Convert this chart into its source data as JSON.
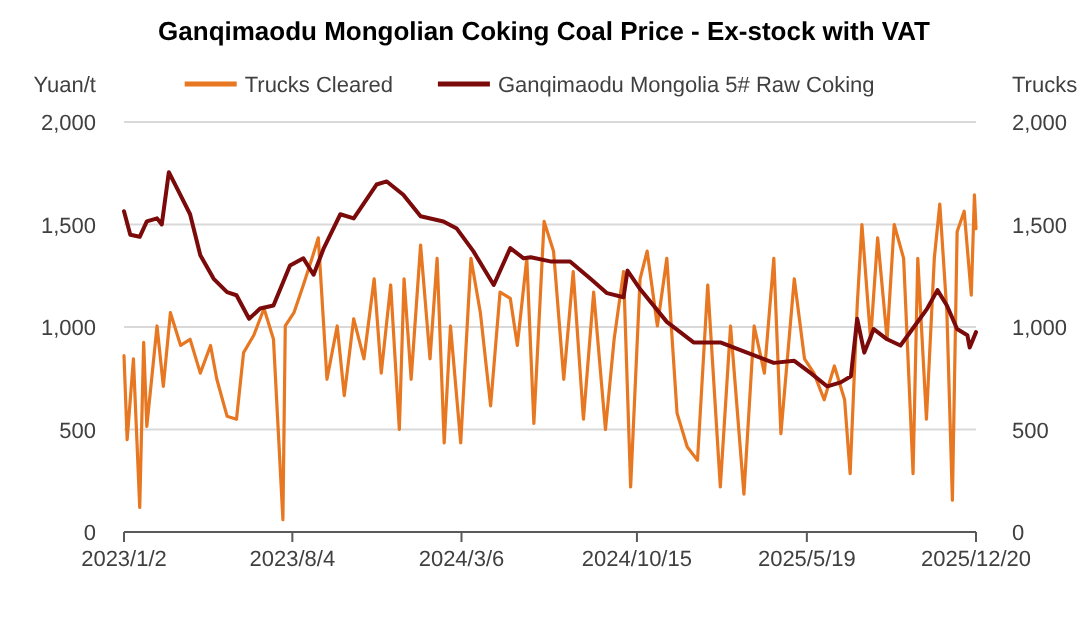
{
  "chart_data": {
    "type": "line",
    "title": "Ganqimaodu Mongolian Coking Coal Price - Ex-stock with VAT",
    "ylabel": "Yuan/t",
    "y2label": "Trucks",
    "legend": "top",
    "grid": "y",
    "xlim": [
      "2023-01-02",
      "2025-12-20"
    ],
    "xticks": [
      {
        "value": "2023-01-02",
        "label": "2023/1/2"
      },
      {
        "value": "2023-08-04",
        "label": "2023/8/4"
      },
      {
        "value": "2024-03-06",
        "label": "2024/3/6"
      },
      {
        "value": "2024-10-15",
        "label": "2024/10/15"
      },
      {
        "value": "2025-05-19",
        "label": "2025/5/19"
      },
      {
        "value": "2025-12-20",
        "label": "2025/12/20"
      }
    ],
    "ylim": [
      0,
      2000
    ],
    "yticks": [
      0,
      {
        "value": 500,
        "label": "500"
      },
      {
        "value": 1000,
        "label": "1,000"
      },
      {
        "value": 1500,
        "label": "1,500"
      },
      {
        "value": 2000,
        "label": "2,000"
      }
    ],
    "y2lim": [
      0,
      2000
    ],
    "y2ticks": [
      0,
      {
        "value": 500,
        "label": "500"
      },
      {
        "value": 1000,
        "label": "1,000"
      },
      {
        "value": 1500,
        "label": "1,500"
      },
      {
        "value": 2000,
        "label": "2,000"
      }
    ],
    "series": [
      {
        "name": "Trucks Cleared",
        "color": "#e87722",
        "axis": "y2",
        "x": [
          "2023-01-02",
          "2023-01-06",
          "2023-01-14",
          "2023-01-22",
          "2023-01-27",
          "2023-01-31",
          "2023-02-13",
          "2023-02-21",
          "2023-03-02",
          "2023-03-15",
          "2023-03-27",
          "2023-04-09",
          "2023-04-22",
          "2023-04-30",
          "2023-05-13",
          "2023-05-25",
          "2023-06-03",
          "2023-06-16",
          "2023-06-29",
          "2023-07-11",
          "2023-07-23",
          "2023-07-26",
          "2023-08-06",
          "2023-08-18",
          "2023-08-29",
          "2023-09-06",
          "2023-09-17",
          "2023-09-30",
          "2023-10-09",
          "2023-10-21",
          "2023-11-03",
          "2023-11-16",
          "2023-11-25",
          "2023-12-07",
          "2023-12-18",
          "2023-12-24",
          "2024-01-02",
          "2024-01-14",
          "2024-01-26",
          "2024-02-04",
          "2024-02-13",
          "2024-02-21",
          "2024-03-05",
          "2024-03-18",
          "2024-03-30",
          "2024-04-12",
          "2024-04-24",
          "2024-05-07",
          "2024-05-16",
          "2024-05-28",
          "2024-06-06",
          "2024-06-19",
          "2024-07-01",
          "2024-07-14",
          "2024-07-26",
          "2024-08-08",
          "2024-08-21",
          "2024-09-05",
          "2024-09-16",
          "2024-09-28",
          "2024-10-07",
          "2024-10-19",
          "2024-10-28",
          "2024-11-10",
          "2024-11-22",
          "2024-12-05",
          "2024-12-18",
          "2024-12-31",
          "2025-01-13",
          "2025-01-29",
          "2025-02-11",
          "2025-02-28",
          "2025-03-13",
          "2025-03-26",
          "2025-04-07",
          "2025-04-16",
          "2025-05-03",
          "2025-05-16",
          "2025-05-28",
          "2025-06-10",
          "2025-06-23",
          "2025-07-06",
          "2025-07-13",
          "2025-07-22",
          "2025-07-28",
          "2025-08-08",
          "2025-08-17",
          "2025-08-29",
          "2025-09-07",
          "2025-09-19",
          "2025-10-01",
          "2025-10-07",
          "2025-10-18",
          "2025-10-28",
          "2025-11-04",
          "2025-11-13",
          "2025-11-20",
          "2025-11-26",
          "2025-12-05",
          "2025-12-14",
          "2025-12-18",
          "2025-12-20"
        ],
        "values": [
          860,
          450,
          845,
          120,
          925,
          515,
          1005,
          710,
          1070,
          910,
          940,
          775,
          910,
          745,
          565,
          550,
          875,
          960,
          1090,
          940,
          60,
          1005,
          1070,
          1205,
          1335,
          1435,
          745,
          1005,
          665,
          1040,
          845,
          1235,
          775,
          1205,
          500,
          1235,
          745,
          1400,
          845,
          1335,
          435,
          1005,
          435,
          1335,
          1070,
          615,
          1170,
          1140,
          910,
          1335,
          530,
          1515,
          1370,
          745,
          1270,
          550,
          1170,
          500,
          940,
          1270,
          220,
          1235,
          1370,
          1005,
          1335,
          580,
          415,
          350,
          1205,
          220,
          1005,
          185,
          1005,
          775,
          1335,
          480,
          1235,
          845,
          775,
          645,
          810,
          645,
          285,
          1105,
          1500,
          940,
          1435,
          940,
          1500,
          1335,
          285,
          1335,
          550,
          1335,
          1600,
          1070,
          155,
          1465,
          1565,
          1155,
          1645,
          1480
        ]
      },
      {
        "name": "Ganqimaodu Mongolia 5# Raw Coking",
        "color": "#7b0a0a",
        "x": [
          "2023-01-02",
          "2023-01-10",
          "2023-01-22",
          "2023-01-31",
          "2023-02-13",
          "2023-02-19",
          "2023-02-28",
          "2023-03-10",
          "2023-03-27",
          "2023-04-09",
          "2023-04-26",
          "2023-05-13",
          "2023-05-25",
          "2023-06-10",
          "2023-06-24",
          "2023-07-11",
          "2023-08-01",
          "2023-08-18",
          "2023-08-31",
          "2023-09-13",
          "2023-10-04",
          "2023-10-21",
          "2023-11-19",
          "2023-12-02",
          "2023-12-23",
          "2024-01-14",
          "2024-02-12",
          "2024-02-29",
          "2024-03-21",
          "2024-04-16",
          "2024-05-07",
          "2024-05-24",
          "2024-06-02",
          "2024-06-27",
          "2024-07-22",
          "2024-08-17",
          "2024-09-07",
          "2024-09-28",
          "2024-10-03",
          "2024-10-19",
          "2024-11-22",
          "2024-12-26",
          "2025-01-29",
          "2025-03-04",
          "2025-04-07",
          "2025-05-03",
          "2025-05-24",
          "2025-06-14",
          "2025-07-01",
          "2025-07-14",
          "2025-07-22",
          "2025-07-31",
          "2025-08-12",
          "2025-08-29",
          "2025-09-15",
          "2025-10-03",
          "2025-10-19",
          "2025-11-01",
          "2025-11-13",
          "2025-11-26",
          "2025-12-09",
          "2025-12-12",
          "2025-12-20"
        ],
        "values": [
          1565,
          1450,
          1440,
          1515,
          1530,
          1500,
          1755,
          1680,
          1550,
          1350,
          1235,
          1170,
          1155,
          1040,
          1090,
          1105,
          1300,
          1335,
          1255,
          1385,
          1550,
          1530,
          1695,
          1710,
          1645,
          1540,
          1515,
          1480,
          1370,
          1205,
          1385,
          1335,
          1340,
          1320,
          1320,
          1235,
          1165,
          1145,
          1275,
          1185,
          1025,
          925,
          925,
          875,
          825,
          835,
          775,
          710,
          730,
          760,
          1040,
          875,
          990,
          940,
          910,
          1005,
          1090,
          1180,
          1105,
          990,
          960,
          900,
          975
        ]
      }
    ]
  }
}
